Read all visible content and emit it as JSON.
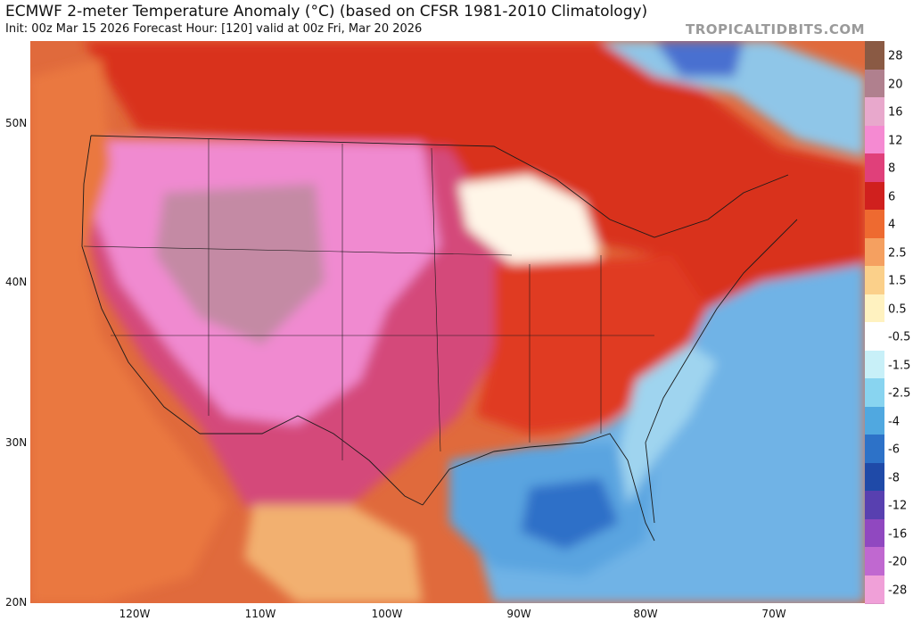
{
  "header": {
    "title": "ECMWF 2-meter Temperature Anomaly (°C) (based on CFSR 1981-2010 Climatology)",
    "subtitle": "Init: 00z Mar 15 2026   Forecast Hour: [120]   valid at 00z Fri, Mar 20 2026",
    "brand": "TROPICALTIDBITS.COM"
  },
  "map": {
    "latitude_labels": [
      "50N",
      "40N",
      "30N",
      "20N"
    ],
    "longitude_labels": [
      "120W",
      "110W",
      "100W",
      "90W",
      "80W",
      "70W"
    ],
    "colors": {
      "ocean_warm": "#e06a3c",
      "ocean_cool": "#6fb3e6",
      "land_hot": "#d44a7a",
      "land_very_hot": "#f08ad0",
      "land_warm": "#e03a22"
    }
  },
  "legend": {
    "labels": [
      "28",
      "20",
      "16",
      "12",
      "8",
      "6",
      "4",
      "2.5",
      "1.5",
      "0.5",
      "-0.5",
      "-1.5",
      "-2.5",
      "-4",
      "-6",
      "-8",
      "-12",
      "-16",
      "-20",
      "-28"
    ],
    "colors": [
      "#8a5a44",
      "#b0808e",
      "#e8a8cc",
      "#f58ad2",
      "#e0407a",
      "#d0201e",
      "#ee6a30",
      "#f5a060",
      "#fbd08a",
      "#fff2c0",
      "#ffffff",
      "#c8f0f8",
      "#88d4f0",
      "#50a8e0",
      "#2d72c8",
      "#1f4aa8",
      "#5840b0",
      "#9048c0",
      "#c068d0",
      "#f0a0d8"
    ]
  }
}
